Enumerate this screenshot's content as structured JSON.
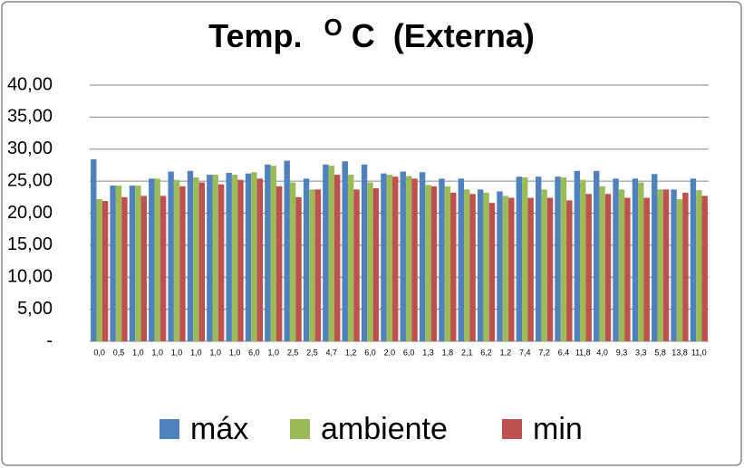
{
  "chart_data": {
    "type": "bar",
    "title": [
      "Temp.",
      "O",
      "C  (Externa)"
    ],
    "categories": [
      "0,0",
      "0,5",
      "1,0",
      "1,0",
      "1,0",
      "1,0",
      "1,0",
      "1,0",
      "6,0",
      "1,0",
      "2,5",
      "2,5",
      "4,7",
      "1,2",
      "6,0",
      "2,0",
      "6,0",
      "1,3",
      "1,8",
      "2,1",
      "6,2",
      "1,2",
      "7,4",
      "7,2",
      "6,4",
      "11,8",
      "4,0",
      "9,3",
      "3,3",
      "5,8",
      "13,8",
      "11,0"
    ],
    "series": [
      {
        "name": "máx",
        "color": "#4f81bd",
        "values": [
          28.4,
          24.3,
          24.3,
          25.4,
          26.5,
          26.6,
          26.0,
          26.3,
          26.2,
          27.6,
          28.2,
          25.4,
          27.6,
          28.1,
          27.6,
          26.2,
          26.5,
          26.4,
          25.4,
          25.4,
          23.7,
          23.4,
          25.7,
          25.7,
          25.7,
          26.6,
          26.6,
          25.4,
          25.4,
          26.1,
          23.7,
          25.4
        ]
      },
      {
        "name": "ambiente",
        "color": "#9bbb59",
        "values": [
          22.2,
          24.3,
          24.3,
          25.4,
          25.2,
          25.6,
          26.0,
          26.0,
          26.4,
          27.4,
          24.8,
          23.7,
          27.4,
          26.0,
          24.8,
          26.0,
          25.8,
          24.4,
          24.2,
          23.7,
          23.2,
          22.7,
          25.6,
          23.7,
          25.6,
          25.2,
          24.2,
          23.7,
          24.8,
          23.7,
          22.2,
          23.6
        ]
      },
      {
        "name": "min",
        "color": "#c0504d",
        "values": [
          21.9,
          22.5,
          22.7,
          22.7,
          24.2,
          24.8,
          24.5,
          25.2,
          25.4,
          24.2,
          22.5,
          23.7,
          26.0,
          23.7,
          23.9,
          25.7,
          25.4,
          24.2,
          23.2,
          23.0,
          21.6,
          22.4,
          22.4,
          22.4,
          22.0,
          23.0,
          23.0,
          22.4,
          22.4,
          23.7,
          23.2,
          22.7
        ]
      }
    ],
    "ylim": [
      0,
      40
    ],
    "yticks": [
      {
        "value": 0,
        "label": "-"
      },
      {
        "value": 5,
        "label": "5,00"
      },
      {
        "value": 10,
        "label": "10,00"
      },
      {
        "value": 15,
        "label": "15,00"
      },
      {
        "value": 20,
        "label": "20,00"
      },
      {
        "value": 25,
        "label": "25,00"
      },
      {
        "value": 30,
        "label": "30,00"
      },
      {
        "value": 35,
        "label": "35,00"
      },
      {
        "value": 40,
        "label": "40,00"
      }
    ],
    "grid": true
  }
}
